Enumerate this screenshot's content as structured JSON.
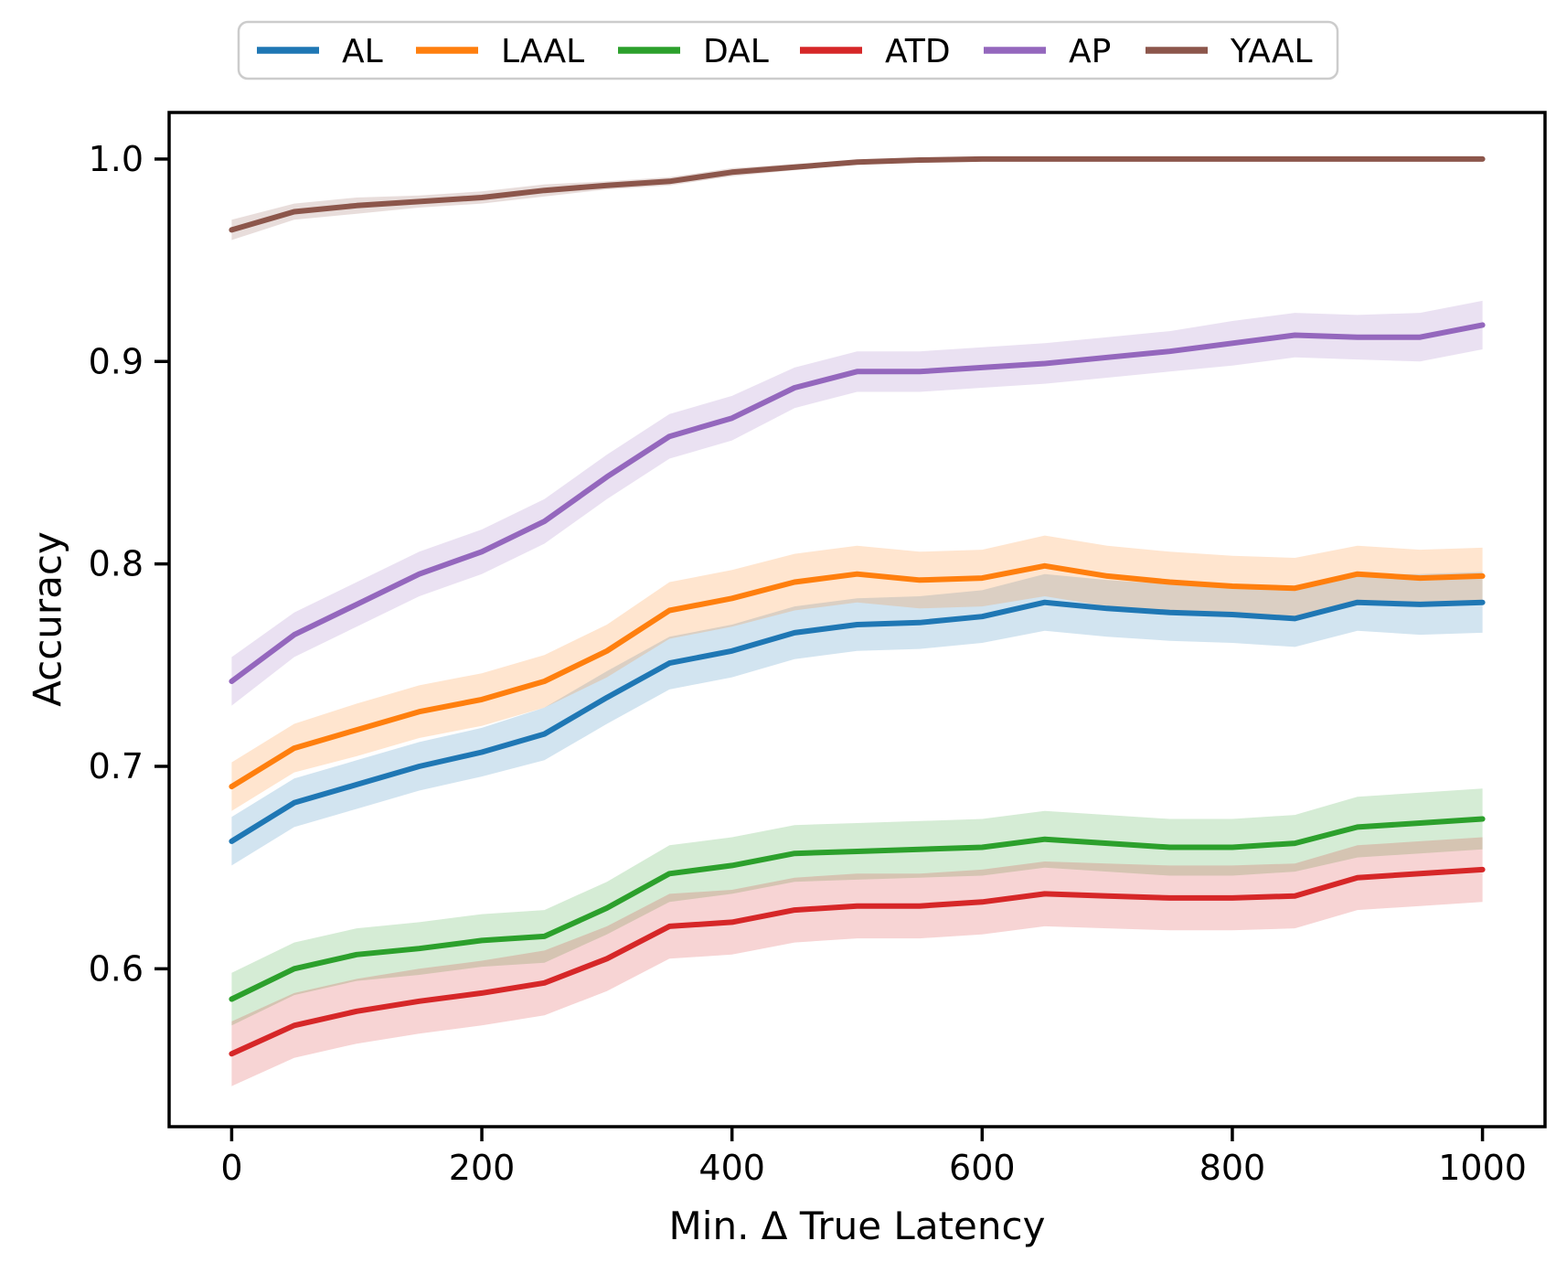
{
  "chart_data": {
    "type": "line",
    "title": "",
    "xlabel": "Min. Δ True Latency",
    "ylabel": "Accuracy",
    "xlim": [
      -50,
      1050
    ],
    "ylim": [
      0.522,
      1.023
    ],
    "xticks": [
      0,
      200,
      400,
      600,
      800,
      1000
    ],
    "xtick_labels": [
      "0",
      "200",
      "400",
      "600",
      "800",
      "1000"
    ],
    "yticks": [
      1.0,
      0.9,
      0.8,
      0.7,
      0.6
    ],
    "ytick_labels": [
      "1.0",
      "0.9",
      "0.8",
      "0.7",
      "0.6"
    ],
    "grid": false,
    "legend_position": "upper center",
    "band_alpha": 0.2,
    "x": [
      0,
      50,
      100,
      150,
      200,
      250,
      300,
      350,
      400,
      450,
      500,
      550,
      600,
      650,
      700,
      750,
      800,
      850,
      900,
      950,
      1000
    ],
    "series": [
      {
        "name": "AL",
        "color": "#1f77b4",
        "values": [
          0.663,
          0.682,
          0.691,
          0.7,
          0.707,
          0.716,
          0.734,
          0.751,
          0.757,
          0.766,
          0.77,
          0.771,
          0.774,
          0.781,
          0.778,
          0.776,
          0.775,
          0.773,
          0.781,
          0.78,
          0.781
        ],
        "band": [
          0.012,
          0.012,
          0.012,
          0.012,
          0.012,
          0.013,
          0.013,
          0.013,
          0.013,
          0.013,
          0.013,
          0.013,
          0.013,
          0.014,
          0.014,
          0.014,
          0.014,
          0.014,
          0.014,
          0.015,
          0.015
        ]
      },
      {
        "name": "LAAL",
        "color": "#ff7f0e",
        "values": [
          0.69,
          0.709,
          0.718,
          0.727,
          0.733,
          0.742,
          0.757,
          0.777,
          0.783,
          0.791,
          0.795,
          0.792,
          0.793,
          0.799,
          0.794,
          0.791,
          0.789,
          0.788,
          0.795,
          0.793,
          0.794
        ],
        "band": [
          0.012,
          0.012,
          0.013,
          0.013,
          0.013,
          0.013,
          0.013,
          0.014,
          0.014,
          0.014,
          0.014,
          0.014,
          0.014,
          0.015,
          0.015,
          0.015,
          0.015,
          0.015,
          0.014,
          0.014,
          0.014
        ]
      },
      {
        "name": "DAL",
        "color": "#2ca02c",
        "values": [
          0.585,
          0.6,
          0.607,
          0.61,
          0.614,
          0.616,
          0.63,
          0.647,
          0.651,
          0.657,
          0.658,
          0.659,
          0.66,
          0.664,
          0.662,
          0.66,
          0.66,
          0.662,
          0.67,
          0.672,
          0.674
        ],
        "band": [
          0.013,
          0.013,
          0.013,
          0.013,
          0.013,
          0.013,
          0.013,
          0.014,
          0.014,
          0.014,
          0.014,
          0.014,
          0.014,
          0.014,
          0.014,
          0.014,
          0.014,
          0.014,
          0.015,
          0.015,
          0.015
        ]
      },
      {
        "name": "ATD",
        "color": "#d62728",
        "values": [
          0.558,
          0.572,
          0.579,
          0.584,
          0.588,
          0.593,
          0.605,
          0.621,
          0.623,
          0.629,
          0.631,
          0.631,
          0.633,
          0.637,
          0.636,
          0.635,
          0.635,
          0.636,
          0.645,
          0.647,
          0.649
        ],
        "band": [
          0.016,
          0.016,
          0.016,
          0.016,
          0.016,
          0.016,
          0.016,
          0.016,
          0.016,
          0.016,
          0.016,
          0.016,
          0.016,
          0.016,
          0.016,
          0.016,
          0.016,
          0.016,
          0.016,
          0.016,
          0.016
        ]
      },
      {
        "name": "AP",
        "color": "#9467bd",
        "values": [
          0.742,
          0.765,
          0.78,
          0.795,
          0.806,
          0.821,
          0.843,
          0.863,
          0.872,
          0.887,
          0.895,
          0.895,
          0.897,
          0.899,
          0.902,
          0.905,
          0.909,
          0.913,
          0.912,
          0.912,
          0.918
        ],
        "band": [
          0.012,
          0.011,
          0.011,
          0.011,
          0.011,
          0.011,
          0.011,
          0.011,
          0.011,
          0.01,
          0.01,
          0.01,
          0.01,
          0.01,
          0.01,
          0.01,
          0.011,
          0.011,
          0.011,
          0.012,
          0.012
        ]
      },
      {
        "name": "YAAL",
        "color": "#8c564b",
        "values": [
          0.965,
          0.974,
          0.977,
          0.979,
          0.981,
          0.9845,
          0.987,
          0.989,
          0.9935,
          0.996,
          0.9985,
          0.9995,
          1.0,
          1.0,
          1.0,
          1.0,
          1.0,
          1.0,
          1.0,
          1.0,
          1.0
        ],
        "band": [
          0.005,
          0.004,
          0.004,
          0.003,
          0.003,
          0.003,
          0.002,
          0.002,
          0.002,
          0.0015,
          0.001,
          0.001,
          0.001,
          0.001,
          0.001,
          0.001,
          0.001,
          0.001,
          0.001,
          0.001,
          0.001
        ]
      }
    ]
  }
}
